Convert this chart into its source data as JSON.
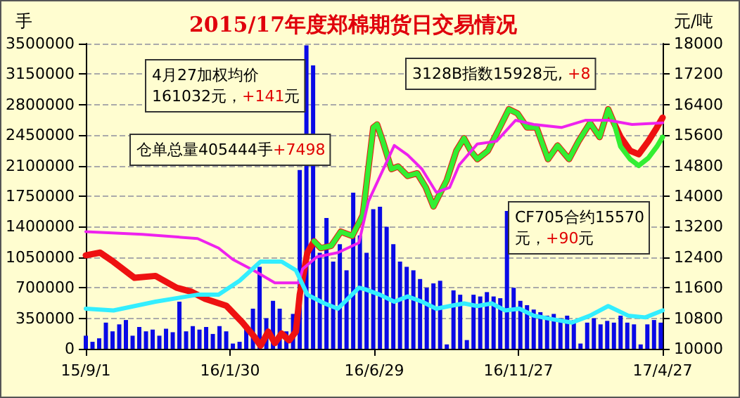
{
  "chart_data": {
    "type": "line",
    "title": "2015/17年度郑棉期货日交易情况",
    "ylabel": "手",
    "y2label": "元/吨",
    "annotations": [
      "4月27加权均价\n161032元，+141元",
      "仓单总量405444手+7498",
      "3128B指数15928元, +8",
      "CF705合约15570\n元，+90元"
    ],
    "xlim": [
      "2015-09-01",
      "2017-04-27"
    ],
    "xticks": [
      {
        "value": "2015-09-01",
        "label": "15/9/1"
      },
      {
        "value": "2016-01-30",
        "label": "16/1/30"
      },
      {
        "value": "2016-06-29",
        "label": "16/6/29"
      },
      {
        "value": "2016-11-27",
        "label": "16/11/27"
      },
      {
        "value": "2017-04-27",
        "label": "17/4/27"
      }
    ],
    "ylim": [
      0,
      3500000
    ],
    "yticks": [
      0,
      350000,
      700000,
      1050000,
      1400000,
      1750000,
      2100000,
      2450000,
      2800000,
      3150000,
      3500000
    ],
    "y2lim": [
      10000,
      18000
    ],
    "y2ticks": [
      10000,
      10800,
      11600,
      12400,
      13200,
      14000,
      14800,
      15600,
      16400,
      17200,
      18000
    ],
    "grid": "y",
    "marker": "none",
    "series": [
      {
        "type": "bar",
        "color": "#0a0ae6",
        "x": [
          "2015-09-01",
          "2015-09-08",
          "2015-09-15",
          "2015-09-22",
          "2015-09-29",
          "2015-10-06",
          "2015-10-13",
          "2015-10-20",
          "2015-10-27",
          "2015-11-03",
          "2015-11-10",
          "2015-11-17",
          "2015-11-24",
          "2015-12-01",
          "2015-12-08",
          "2015-12-15",
          "2015-12-22",
          "2015-12-29",
          "2016-01-05",
          "2016-01-12",
          "2016-01-19",
          "2016-01-26",
          "2016-02-02",
          "2016-02-09",
          "2016-02-16",
          "2016-02-23",
          "2016-03-01",
          "2016-03-08",
          "2016-03-15",
          "2016-03-22",
          "2016-03-29",
          "2016-04-05",
          "2016-04-12",
          "2016-04-19",
          "2016-04-26",
          "2016-05-03",
          "2016-05-10",
          "2016-05-17",
          "2016-05-24",
          "2016-05-31",
          "2016-06-07",
          "2016-06-14",
          "2016-06-21",
          "2016-06-28",
          "2016-07-05",
          "2016-07-12",
          "2016-07-19",
          "2016-07-26",
          "2016-08-02",
          "2016-08-09",
          "2016-08-16",
          "2016-08-23",
          "2016-08-30",
          "2016-09-06",
          "2016-09-13",
          "2016-09-20",
          "2016-09-27",
          "2016-10-04",
          "2016-10-11",
          "2016-10-18",
          "2016-10-25",
          "2016-11-01",
          "2016-11-08",
          "2016-11-15",
          "2016-11-22",
          "2016-11-29",
          "2016-12-06",
          "2016-12-13",
          "2016-12-20",
          "2016-12-27",
          "2017-01-03",
          "2017-01-10",
          "2017-01-17",
          "2017-01-24",
          "2017-01-31",
          "2017-02-07",
          "2017-02-14",
          "2017-02-21",
          "2017-02-28",
          "2017-03-07",
          "2017-03-14",
          "2017-03-21",
          "2017-03-28",
          "2017-04-04",
          "2017-04-11",
          "2017-04-18",
          "2017-04-25"
        ],
        "values": [
          150000,
          80000,
          120000,
          300000,
          200000,
          280000,
          330000,
          150000,
          250000,
          200000,
          220000,
          150000,
          230000,
          190000,
          540000,
          200000,
          260000,
          220000,
          250000,
          170000,
          260000,
          200000,
          60000,
          80000,
          250000,
          460000,
          940000,
          350000,
          550000,
          460000,
          200000,
          400000,
          2050000,
          3480000,
          3250000,
          1100000,
          1500000,
          1000000,
          1200000,
          900000,
          1790000,
          1300000,
          1100000,
          1600000,
          1630000,
          1400000,
          1200000,
          1000000,
          940000,
          900000,
          800000,
          700000,
          750000,
          780000,
          50000,
          670000,
          620000,
          100000,
          620000,
          600000,
          650000,
          600000,
          580000,
          1580000,
          700000,
          550000,
          500000,
          450000,
          420000,
          380000,
          400000,
          350000,
          380000,
          330000,
          60000,
          300000,
          350000,
          280000,
          320000,
          300000,
          380000,
          300000,
          280000,
          50000,
          280000,
          330000,
          300000
        ]
      },
      {
        "color": "#ee1111",
        "axis": "y2",
        "x": [
          "2015-09-01",
          "2015-09-16",
          "2015-09-30",
          "2015-10-22",
          "2015-11-13",
          "2015-12-05",
          "2015-12-20",
          "2016-01-04",
          "2016-01-26",
          "2016-02-12",
          "2016-02-24",
          "2016-03-02",
          "2016-03-10",
          "2016-03-17",
          "2016-03-24",
          "2016-04-01",
          "2016-04-08",
          "2016-04-12",
          "2016-04-20",
          "2016-04-27",
          "2016-05-04",
          "2016-05-15",
          "2016-05-25",
          "2016-06-06",
          "2016-06-17",
          "2016-06-28",
          "2016-07-02",
          "2016-07-08",
          "2016-07-17",
          "2016-07-24",
          "2016-08-03",
          "2016-08-13",
          "2016-08-22",
          "2016-08-30",
          "2016-09-04",
          "2016-09-13",
          "2016-09-23",
          "2016-10-01",
          "2016-10-08",
          "2016-10-15",
          "2016-10-26",
          "2016-11-06",
          "2016-11-17",
          "2016-11-26",
          "2016-12-06",
          "2016-12-16",
          "2016-12-28",
          "2017-01-07",
          "2017-01-19",
          "2017-01-29",
          "2017-02-10",
          "2017-02-20",
          "2017-03-01",
          "2017-03-07",
          "2017-03-14",
          "2017-03-24",
          "2017-04-02",
          "2017-04-12",
          "2017-04-21",
          "2017-04-27"
        ],
        "values": [
          12450,
          12520,
          12280,
          11860,
          11910,
          11600,
          11500,
          11310,
          11130,
          10690,
          10330,
          10080,
          10450,
          10150,
          10400,
          10220,
          10450,
          11420,
          12520,
          12820,
          12640,
          12700,
          13070,
          12960,
          13500,
          15800,
          15880,
          15440,
          14710,
          14780,
          14530,
          14600,
          14230,
          13730,
          13980,
          14420,
          15190,
          15520,
          15190,
          14970,
          15190,
          15730,
          16280,
          16170,
          15800,
          15800,
          14970,
          15330,
          14970,
          15440,
          15920,
          15550,
          16280,
          15920,
          15550,
          15190,
          15100,
          15440,
          15800,
          16060
        ]
      },
      {
        "color": "#33ee33",
        "axis": "y2",
        "x": [
          "2016-04-27",
          "2016-05-04",
          "2016-05-15",
          "2016-05-25",
          "2016-06-06",
          "2016-06-17",
          "2016-06-28",
          "2016-07-02",
          "2016-07-08",
          "2016-07-17",
          "2016-07-24",
          "2016-08-03",
          "2016-08-13",
          "2016-08-22",
          "2016-08-30",
          "2016-09-04",
          "2016-09-13",
          "2016-09-23",
          "2016-10-01",
          "2016-10-08",
          "2016-10-15",
          "2016-10-26",
          "2016-11-06",
          "2016-11-17",
          "2016-11-26",
          "2016-12-06",
          "2016-12-16",
          "2016-12-28",
          "2017-01-07",
          "2017-01-19",
          "2017-01-29",
          "2017-02-10",
          "2017-02-20",
          "2017-03-01",
          "2017-03-07",
          "2017-03-14",
          "2017-03-24",
          "2017-04-02",
          "2017-04-12",
          "2017-04-21",
          "2017-04-27"
        ],
        "values": [
          12820,
          12640,
          12700,
          13070,
          12960,
          13500,
          15800,
          15880,
          15440,
          14710,
          14780,
          14530,
          14600,
          14230,
          13730,
          13980,
          14420,
          15190,
          15520,
          15190,
          14970,
          15190,
          15730,
          16280,
          16170,
          15800,
          15800,
          14970,
          15330,
          14970,
          15440,
          15920,
          15550,
          16280,
          15920,
          15300,
          14970,
          14800,
          15000,
          15300,
          15550
        ]
      },
      {
        "color": "#ee22ee",
        "axis": "y2",
        "x": [
          "2015-09-01",
          "2015-10-30",
          "2015-12-27",
          "2016-01-18",
          "2016-02-02",
          "2016-02-24",
          "2016-03-17",
          "2016-04-11",
          "2016-04-15",
          "2016-04-30",
          "2016-05-22",
          "2016-06-13",
          "2016-06-23",
          "2016-07-20",
          "2016-08-03",
          "2016-08-18",
          "2016-09-02",
          "2016-09-16",
          "2016-09-26",
          "2016-10-15",
          "2016-11-04",
          "2016-11-24",
          "2016-12-13",
          "2017-01-11",
          "2017-02-05",
          "2017-03-01",
          "2017-03-26",
          "2017-04-27"
        ],
        "values": [
          13070,
          13000,
          12890,
          12640,
          12340,
          12050,
          11730,
          11730,
          12090,
          12410,
          12520,
          12780,
          13870,
          15330,
          15080,
          14710,
          14100,
          14230,
          14820,
          15370,
          15440,
          15990,
          15880,
          15800,
          15990,
          15990,
          15880,
          15920
        ]
      },
      {
        "color": "#33eeff",
        "x": [
          "2015-09-01",
          "2015-09-30",
          "2015-11-13",
          "2015-12-27",
          "2016-01-18",
          "2016-02-09",
          "2016-03-02",
          "2016-03-24",
          "2016-04-08",
          "2016-04-20",
          "2016-05-08",
          "2016-05-22",
          "2016-06-13",
          "2016-06-20",
          "2016-07-05",
          "2016-07-20",
          "2016-08-03",
          "2016-08-18",
          "2016-09-02",
          "2016-09-16",
          "2016-10-01",
          "2016-10-15",
          "2016-10-30",
          "2016-11-13",
          "2016-11-28",
          "2016-12-13",
          "2017-01-01",
          "2017-01-22",
          "2017-02-10",
          "2017-03-01",
          "2017-03-22",
          "2017-04-09",
          "2017-04-27"
        ],
        "values": [
          460000,
          440000,
          540000,
          620000,
          620000,
          780000,
          1000000,
          1000000,
          900000,
          620000,
          520000,
          460000,
          700000,
          680000,
          620000,
          540000,
          600000,
          540000,
          460000,
          490000,
          520000,
          490000,
          520000,
          440000,
          460000,
          380000,
          340000,
          300000,
          380000,
          490000,
          380000,
          360000,
          440000
        ]
      }
    ]
  }
}
